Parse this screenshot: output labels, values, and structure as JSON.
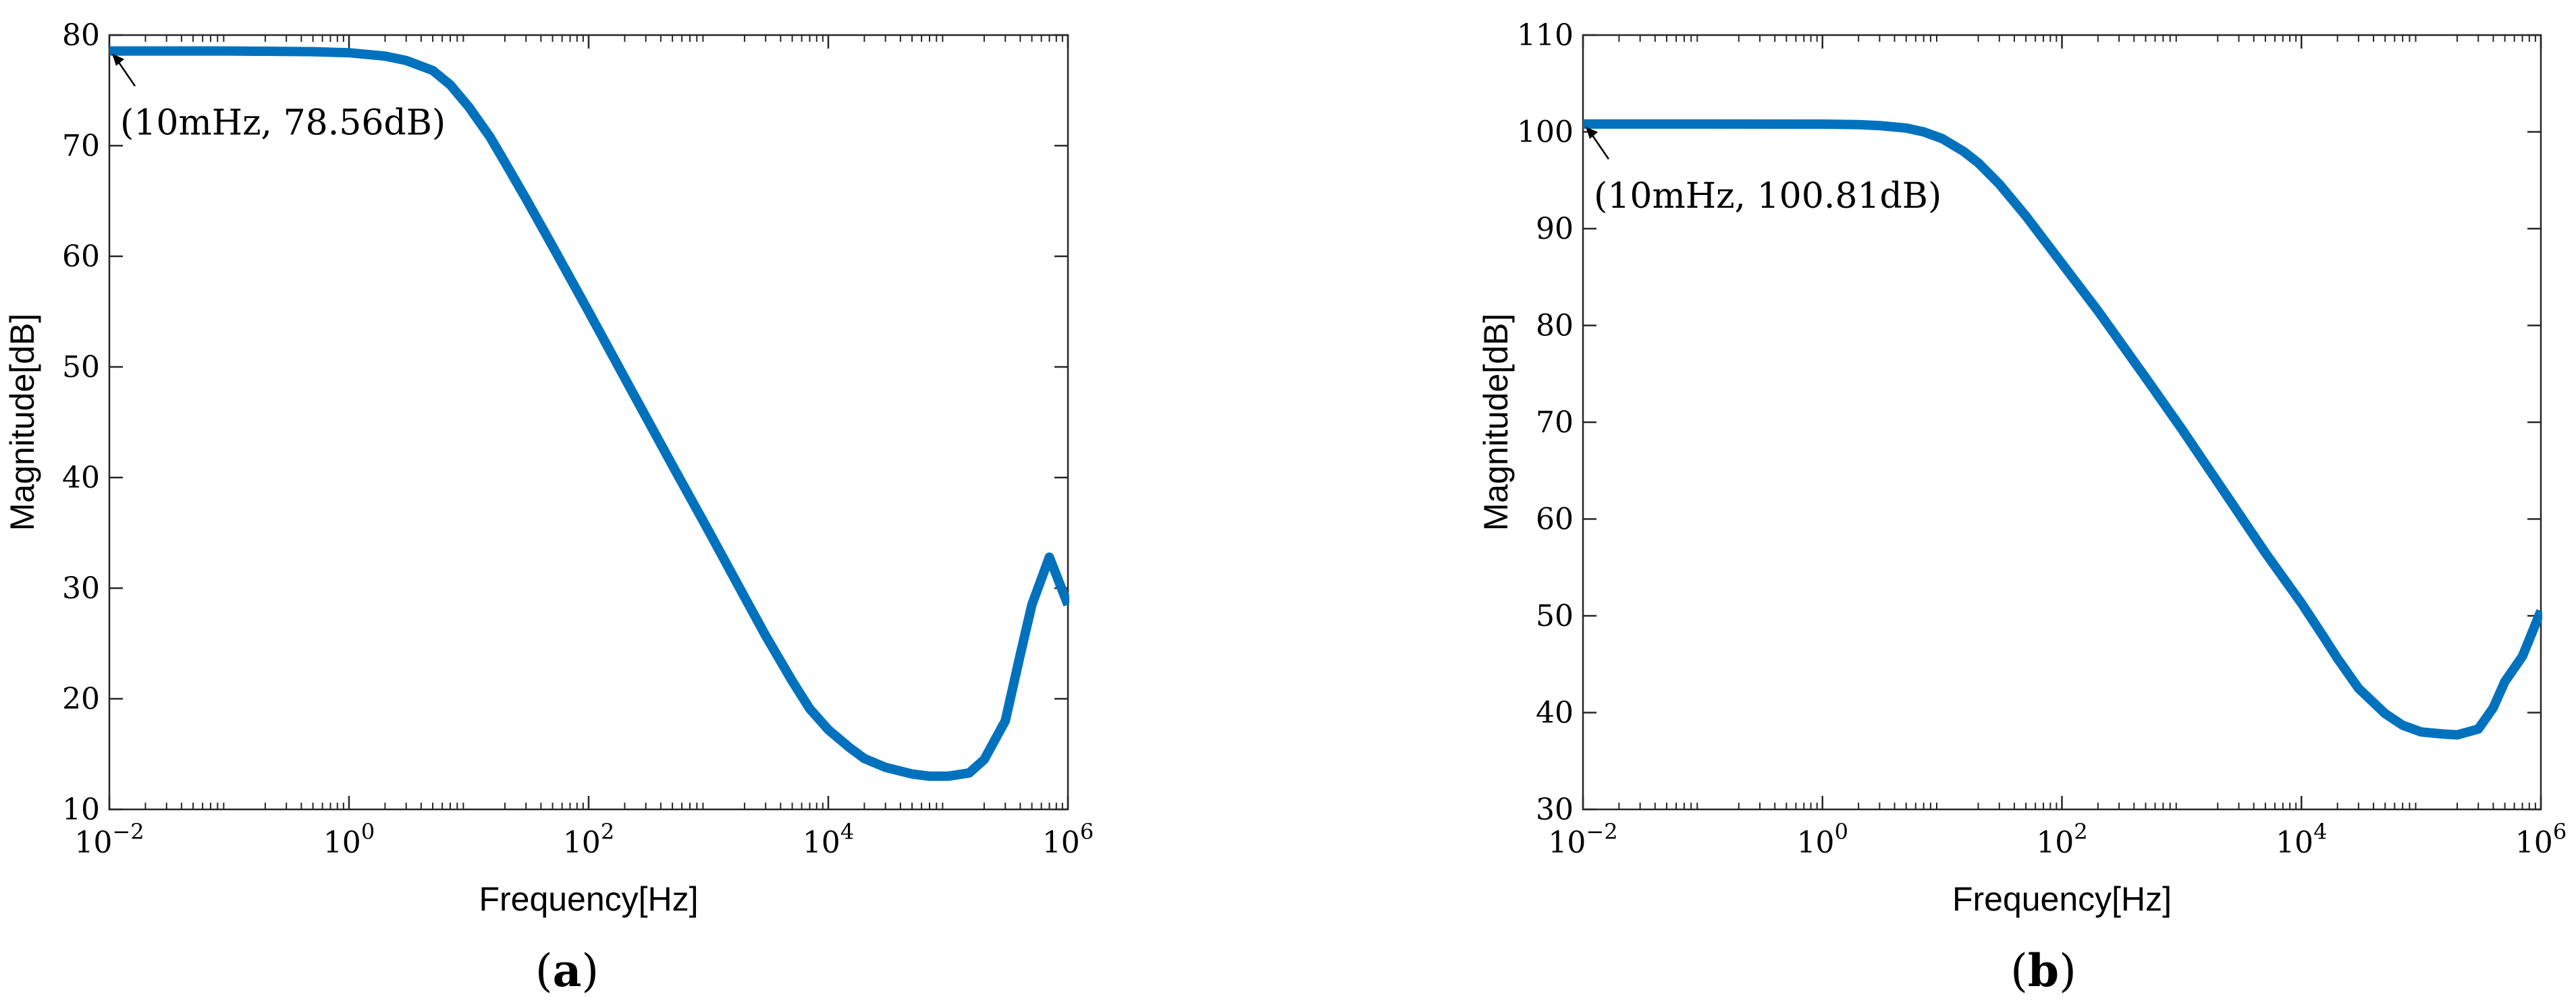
{
  "chart_data": [
    {
      "type": "line",
      "panel": "a",
      "xlabel": "Frequency[Hz]",
      "ylabel": "Magnitude[dB]",
      "xscale": "log",
      "xlim": [
        0.01,
        1000000
      ],
      "ylim": [
        10,
        80
      ],
      "xticks": [
        {
          "base": "10",
          "exp": "−2",
          "value": 0.01
        },
        {
          "base": "10",
          "exp": "0",
          "value": 1
        },
        {
          "base": "10",
          "exp": "2",
          "value": 100
        },
        {
          "base": "10",
          "exp": "4",
          "value": 10000
        },
        {
          "base": "10",
          "exp": "6",
          "value": 1000000
        }
      ],
      "yticks": [
        "10",
        "20",
        "30",
        "40",
        "50",
        "60",
        "70",
        "80"
      ],
      "color": "#0072BD",
      "grid": false,
      "annotation": {
        "text": "(10mHz, 78.56dB)",
        "x": 0.01,
        "y": 78.56
      },
      "series": [
        {
          "x": [
            0.01,
            0.1,
            0.5,
            1,
            2,
            3,
            5,
            7,
            10,
            15,
            20,
            30,
            50,
            100,
            200,
            500,
            1000,
            2000,
            3000,
            5000,
            7000,
            10000,
            15000,
            20000,
            30000,
            50000,
            70000,
            100000,
            150000,
            200000,
            300000,
            400000,
            500000,
            700000,
            1000000
          ],
          "y": [
            78.56,
            78.56,
            78.5,
            78.4,
            78.1,
            77.7,
            76.8,
            75.5,
            73.5,
            70.8,
            68.5,
            65.2,
            60.9,
            55.0,
            49.0,
            41.1,
            35.2,
            29.2,
            25.7,
            21.6,
            19.1,
            17.2,
            15.6,
            14.6,
            13.8,
            13.2,
            13.0,
            13.0,
            13.3,
            14.5,
            18.0,
            24.0,
            28.5,
            32.8,
            28.5
          ]
        }
      ]
    },
    {
      "type": "line",
      "panel": "b",
      "xlabel": "Frequency[Hz]",
      "ylabel": "Magnitude[dB]",
      "xscale": "log",
      "xlim": [
        0.01,
        1000000
      ],
      "ylim": [
        30,
        110
      ],
      "xticks": [
        {
          "base": "10",
          "exp": "−2",
          "value": 0.01
        },
        {
          "base": "10",
          "exp": "0",
          "value": 1
        },
        {
          "base": "10",
          "exp": "2",
          "value": 100
        },
        {
          "base": "10",
          "exp": "4",
          "value": 10000
        },
        {
          "base": "10",
          "exp": "6",
          "value": 1000000
        }
      ],
      "yticks": [
        "30",
        "40",
        "50",
        "60",
        "70",
        "80",
        "90",
        "100",
        "110"
      ],
      "color": "#0072BD",
      "grid": false,
      "annotation": {
        "text": "(10mHz, 100.81dB)",
        "x": 0.01,
        "y": 100.81
      },
      "series": [
        {
          "x": [
            0.01,
            0.1,
            1,
            2,
            3,
            5,
            7,
            10,
            15,
            20,
            30,
            50,
            100,
            200,
            500,
            1000,
            2000,
            5000,
            10000,
            15000,
            20000,
            30000,
            50000,
            70000,
            100000,
            150000,
            200000,
            300000,
            400000,
            500000,
            700000,
            1000000
          ],
          "y": [
            100.81,
            100.81,
            100.8,
            100.75,
            100.65,
            100.4,
            100.0,
            99.3,
            98.0,
            96.8,
            94.6,
            91.3,
            86.4,
            81.5,
            74.6,
            69.3,
            63.8,
            56.5,
            51.3,
            48.0,
            45.6,
            42.5,
            39.9,
            38.7,
            38.0,
            37.8,
            37.7,
            38.3,
            40.5,
            43.2,
            45.8,
            50.5
          ]
        }
      ]
    }
  ],
  "panel_labels": [
    "a",
    "b"
  ]
}
